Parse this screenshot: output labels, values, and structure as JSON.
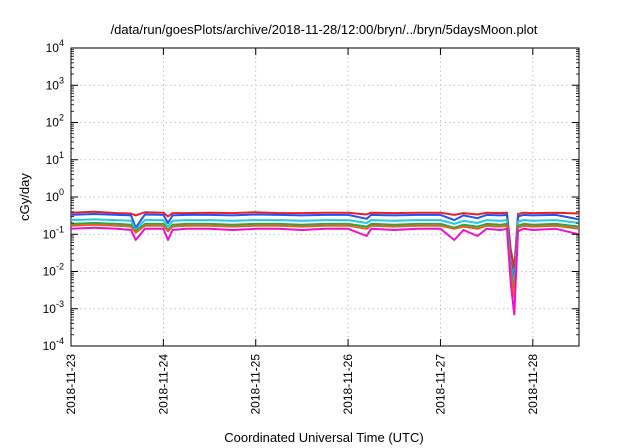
{
  "chart_data": {
    "type": "line",
    "title": "/data/run/goesPlots/archive/2018-11-28/12:00/bryn/../bryn/5daysMoon.plot",
    "xlabel": "Coordinated Universal Time (UTC)",
    "ylabel": "cGy/day",
    "yscale": "log",
    "ylim": [
      0.0001,
      10000
    ],
    "xlim": [
      "2018-11-23 00:00",
      "2018-11-28 12:00"
    ],
    "grid": true,
    "x_ticks": [
      "2018-11-23",
      "2018-11-24",
      "2018-11-25",
      "2018-11-26",
      "2018-11-27",
      "2018-11-28"
    ],
    "y_ticks": [
      {
        "base": "10",
        "exp": "-4"
      },
      {
        "base": "10",
        "exp": "-3"
      },
      {
        "base": "10",
        "exp": "-2"
      },
      {
        "base": "10",
        "exp": "-1"
      },
      {
        "base": "10",
        "exp": "0"
      },
      {
        "base": "10",
        "exp": "1"
      },
      {
        "base": "10",
        "exp": "2"
      },
      {
        "base": "10",
        "exp": "3"
      },
      {
        "base": "10",
        "exp": "4"
      }
    ],
    "x_days": [
      0,
      0.25,
      0.5,
      0.65,
      0.7,
      0.8,
      1.0,
      1.05,
      1.1,
      1.25,
      1.5,
      1.75,
      2.0,
      2.25,
      2.5,
      2.75,
      3.0,
      3.2,
      3.25,
      3.5,
      3.75,
      4.0,
      4.15,
      4.25,
      4.4,
      4.5,
      4.65,
      4.72,
      4.76,
      4.8,
      4.84,
      4.9,
      5.0,
      5.25,
      5.5
    ],
    "series": [
      {
        "color": "#e8202a",
        "values": [
          0.38,
          0.4,
          0.37,
          0.36,
          0.32,
          0.39,
          0.38,
          0.3,
          0.37,
          0.37,
          0.38,
          0.37,
          0.39,
          0.37,
          0.37,
          0.38,
          0.38,
          0.34,
          0.38,
          0.37,
          0.38,
          0.38,
          0.33,
          0.37,
          0.34,
          0.38,
          0.37,
          0.38,
          0.04,
          0.012,
          0.35,
          0.38,
          0.37,
          0.38,
          0.36
        ]
      },
      {
        "color": "#2255ee",
        "values": [
          0.33,
          0.35,
          0.33,
          0.32,
          0.15,
          0.34,
          0.33,
          0.2,
          0.32,
          0.33,
          0.33,
          0.32,
          0.34,
          0.33,
          0.32,
          0.33,
          0.33,
          0.26,
          0.33,
          0.32,
          0.33,
          0.33,
          0.24,
          0.32,
          0.27,
          0.33,
          0.32,
          0.33,
          0.02,
          0.006,
          0.3,
          0.33,
          0.32,
          0.33,
          0.25
        ]
      },
      {
        "color": "#22ccdd",
        "values": [
          0.24,
          0.25,
          0.24,
          0.23,
          0.13,
          0.24,
          0.24,
          0.16,
          0.23,
          0.24,
          0.24,
          0.23,
          0.24,
          0.24,
          0.23,
          0.24,
          0.24,
          0.2,
          0.24,
          0.23,
          0.24,
          0.24,
          0.19,
          0.23,
          0.2,
          0.24,
          0.23,
          0.24,
          0.015,
          0.004,
          0.22,
          0.24,
          0.23,
          0.24,
          0.2
        ]
      },
      {
        "color": "#22aa44",
        "values": [
          0.19,
          0.2,
          0.19,
          0.18,
          0.12,
          0.19,
          0.19,
          0.13,
          0.18,
          0.19,
          0.19,
          0.18,
          0.19,
          0.19,
          0.18,
          0.19,
          0.19,
          0.16,
          0.19,
          0.18,
          0.19,
          0.19,
          0.15,
          0.18,
          0.16,
          0.19,
          0.18,
          0.19,
          0.012,
          0.003,
          0.17,
          0.19,
          0.18,
          0.19,
          0.16
        ]
      },
      {
        "color": "#e86020",
        "values": [
          0.17,
          0.18,
          0.17,
          0.16,
          0.11,
          0.17,
          0.17,
          0.12,
          0.16,
          0.17,
          0.17,
          0.16,
          0.17,
          0.17,
          0.16,
          0.17,
          0.17,
          0.14,
          0.17,
          0.16,
          0.17,
          0.17,
          0.14,
          0.16,
          0.14,
          0.17,
          0.16,
          0.17,
          0.01,
          0.002,
          0.15,
          0.17,
          0.16,
          0.17,
          0.14
        ]
      },
      {
        "color": "#ee11cc",
        "values": [
          0.14,
          0.15,
          0.14,
          0.13,
          0.07,
          0.14,
          0.14,
          0.07,
          0.13,
          0.14,
          0.14,
          0.13,
          0.14,
          0.14,
          0.13,
          0.14,
          0.14,
          0.09,
          0.14,
          0.13,
          0.14,
          0.14,
          0.07,
          0.13,
          0.09,
          0.14,
          0.13,
          0.14,
          0.005,
          0.0007,
          0.12,
          0.14,
          0.13,
          0.14,
          0.1
        ]
      }
    ]
  }
}
